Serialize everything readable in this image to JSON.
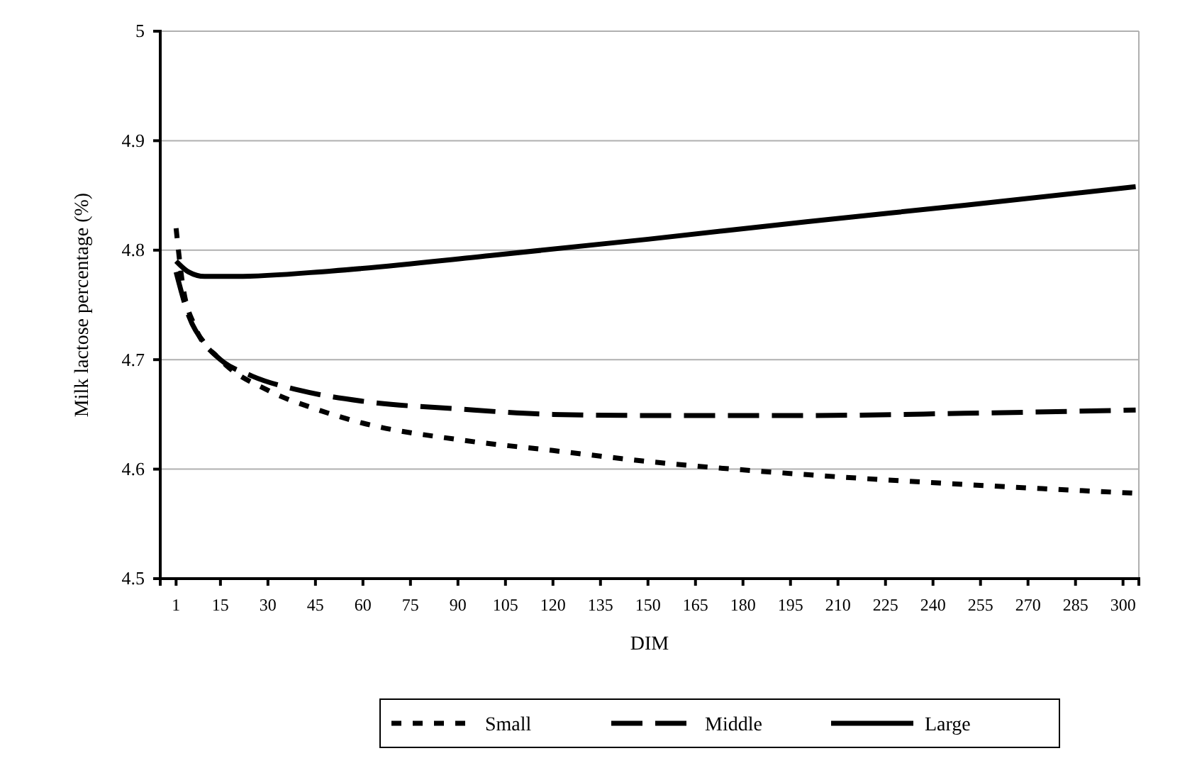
{
  "chart_data": {
    "type": "line",
    "xlabel": "DIM",
    "ylabel": "Milk lactose percentage (%)",
    "xlim": [
      -4,
      305
    ],
    "xticks": [
      1,
      15,
      30,
      45,
      60,
      75,
      90,
      105,
      120,
      135,
      150,
      165,
      180,
      195,
      210,
      225,
      240,
      255,
      270,
      285,
      300
    ],
    "ylim": [
      4.5,
      5
    ],
    "yticks": [
      4.5,
      4.6,
      4.7,
      4.8,
      4.9,
      5
    ],
    "grid": "y",
    "legend": "bottom",
    "series": [
      {
        "name": "Small",
        "color": "#000000",
        "line_style": "dotted",
        "x": [
          1,
          3,
          7,
          15,
          30,
          45,
          60,
          90,
          120,
          150,
          200,
          250,
          304
        ],
        "values": [
          4.82,
          4.77,
          4.73,
          4.7,
          4.672,
          4.655,
          4.642,
          4.627,
          4.617,
          4.607,
          4.595,
          4.586,
          4.578
        ]
      },
      {
        "name": "Middle",
        "color": "#000000",
        "line_style": "dashed",
        "x": [
          1,
          5,
          10,
          15,
          25,
          40,
          60,
          90,
          120,
          150,
          200,
          250,
          304
        ],
        "values": [
          4.78,
          4.74,
          4.715,
          4.7,
          4.685,
          4.672,
          4.662,
          4.655,
          4.65,
          4.649,
          4.649,
          4.651,
          4.654
        ]
      },
      {
        "name": "Large",
        "color": "#000000",
        "line_style": "solid",
        "x": [
          1,
          5,
          10,
          20,
          50,
          100,
          150,
          200,
          250,
          304
        ],
        "values": [
          4.79,
          4.78,
          4.776,
          4.776,
          4.781,
          4.795,
          4.81,
          4.826,
          4.841,
          4.858
        ]
      }
    ]
  }
}
